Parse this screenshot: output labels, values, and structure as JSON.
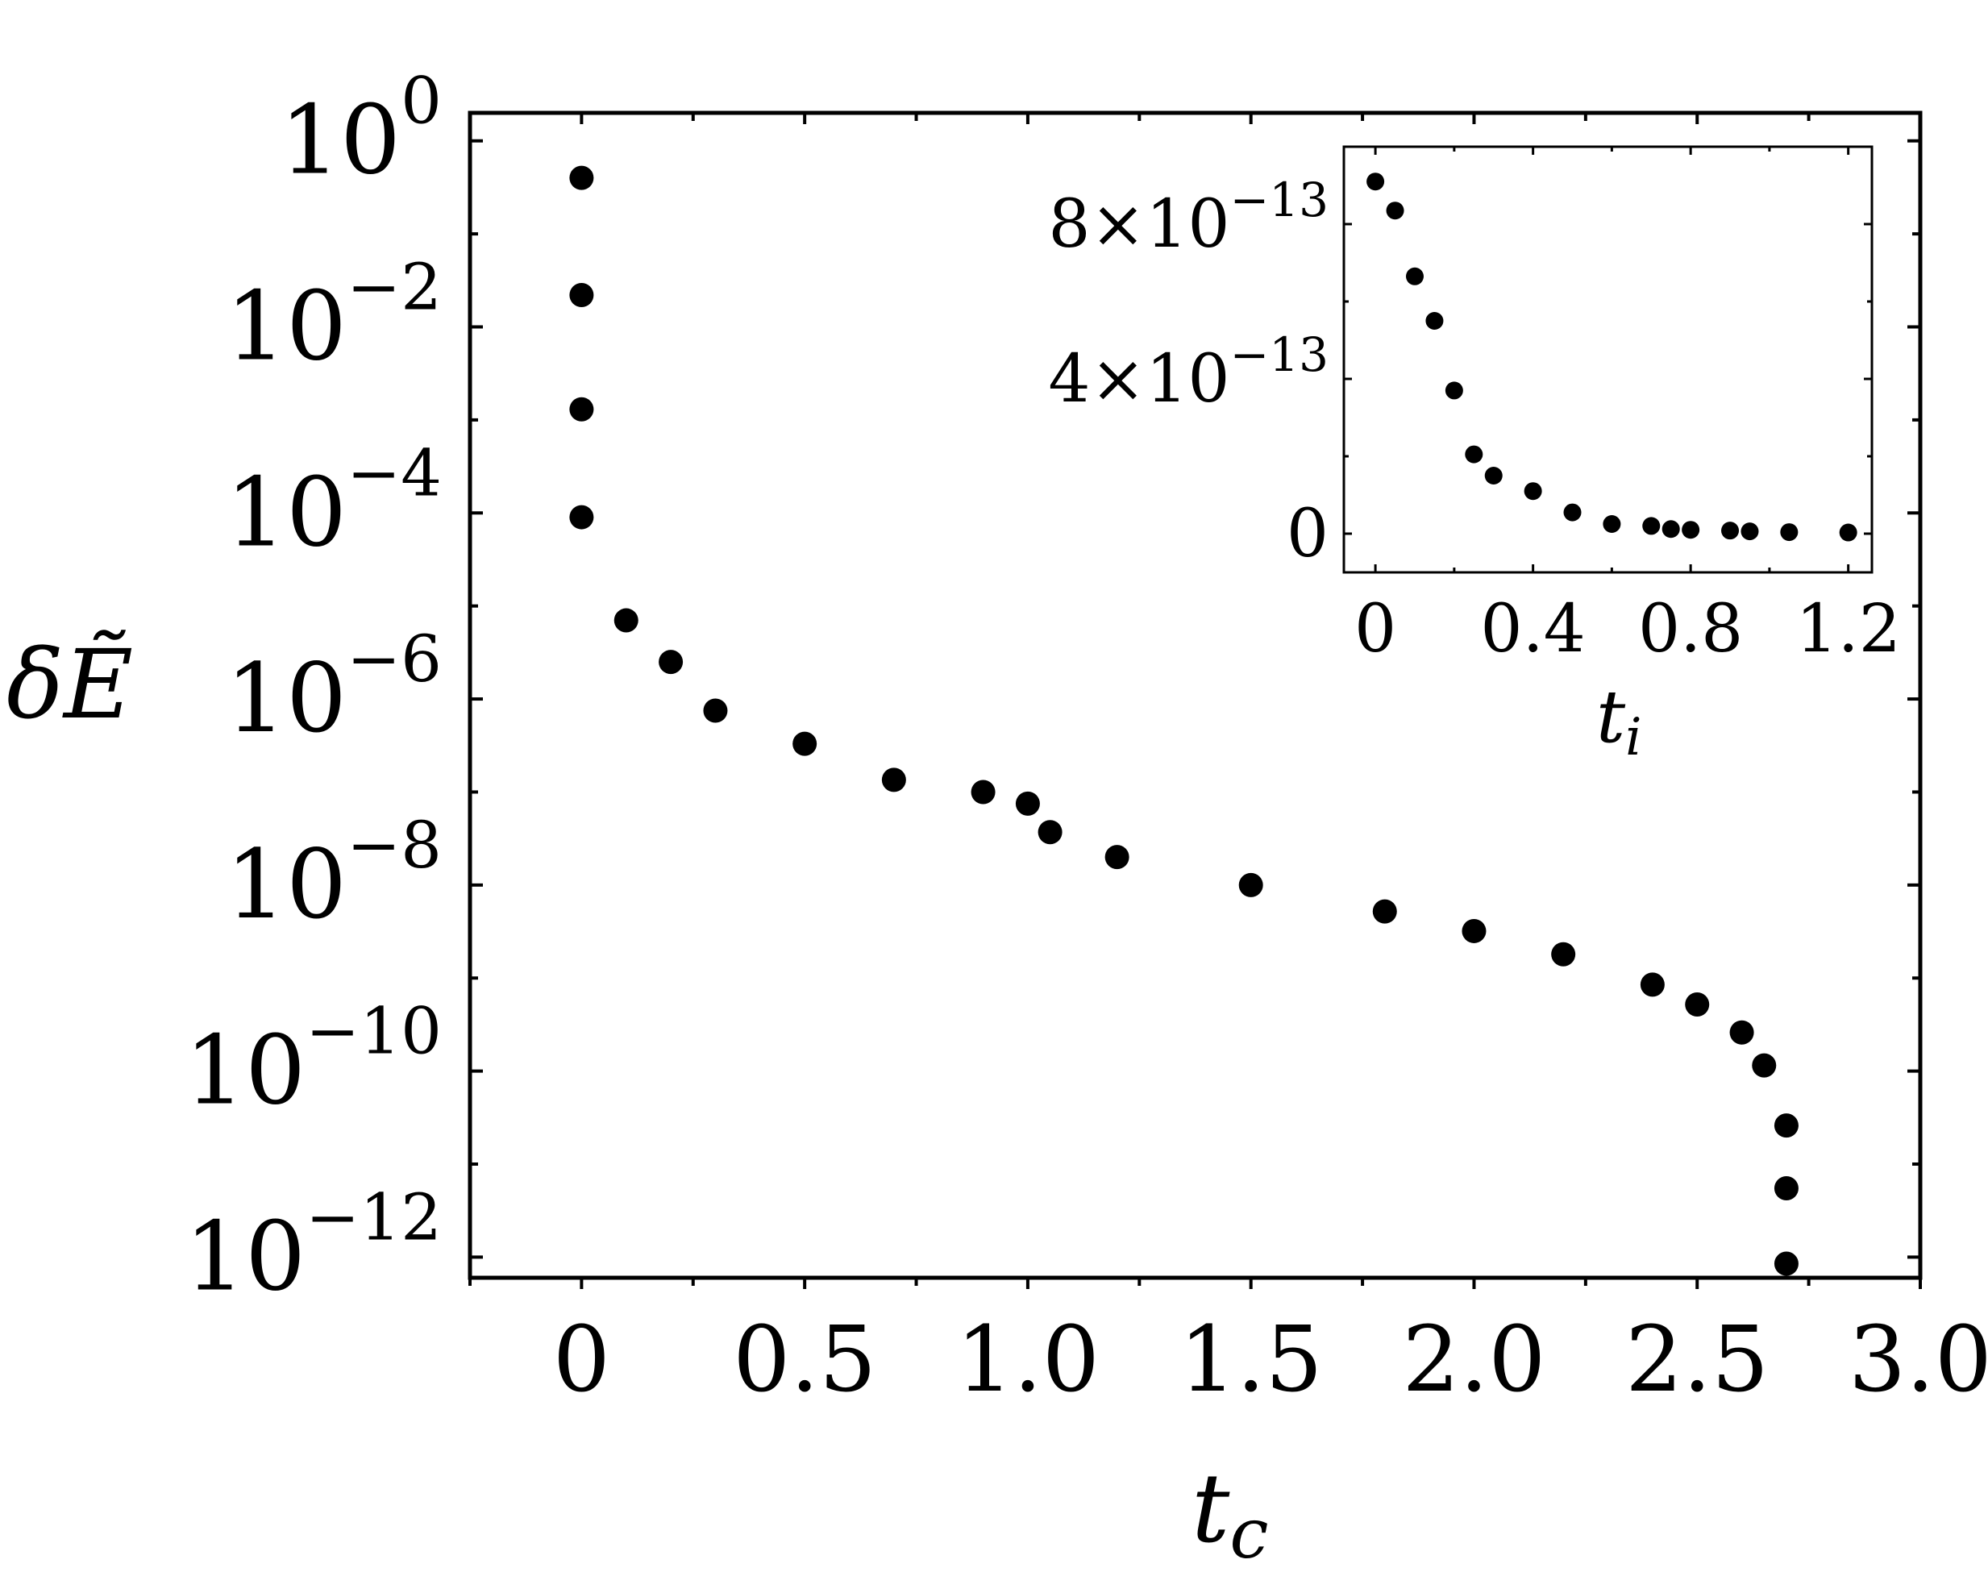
{
  "chart_data": [
    {
      "type": "scatter",
      "xlabel": "t",
      "xlabel_sub": "c",
      "ylabel": "δẼ",
      "yscale": "log",
      "xlim": [
        -0.25,
        3.0
      ],
      "ylim": [
        6e-13,
        2.0
      ],
      "xticks": [
        0,
        0.5,
        1.0,
        1.5,
        2.0,
        2.5,
        3.0
      ],
      "xtick_labels": [
        "0",
        "0.5",
        "1.0",
        "1.5",
        "2.0",
        "2.5",
        "3.0"
      ],
      "ytick_exponents": [
        0,
        -2,
        -4,
        -6,
        -8,
        -10,
        -12
      ],
      "ytick_labels": [
        "10",
        "10",
        "10",
        "10",
        "10",
        "10",
        "10"
      ],
      "ytick_label_sups": [
        "0",
        "−2",
        "−4",
        "−6",
        "−8",
        "−10",
        "−12"
      ],
      "marker_color": "#000000",
      "series": [
        {
          "x": [
            0,
            0,
            0,
            0,
            0.1,
            0.2,
            0.3,
            0.5,
            0.7,
            0.9,
            1.0,
            1.05,
            1.2,
            1.5,
            1.8,
            2.0,
            2.2,
            2.4,
            2.5,
            2.6,
            2.65,
            2.7,
            2.7,
            2.7
          ],
          "y": [
            0.4,
            0.022,
            0.0013,
            9e-05,
            7e-06,
            2.5e-06,
            7.5e-07,
            3.3e-07,
            1.35e-07,
            1e-07,
            7.5e-08,
            3.7e-08,
            2e-08,
            1e-08,
            5.2e-09,
            3.2e-09,
            1.8e-09,
            8.5e-10,
            5.2e-10,
            2.6e-10,
            1.15e-10,
            2.6e-11,
            5.5e-12,
            8.5e-13
          ]
        }
      ]
    },
    {
      "type": "scatter",
      "inset": true,
      "xlabel": "t",
      "xlabel_sub": "i",
      "ylabel": "",
      "xlim": [
        -0.08,
        1.26
      ],
      "ylim": [
        -1e-13,
        1e-12
      ],
      "xticks": [
        0,
        0.4,
        0.8,
        1.2
      ],
      "xtick_labels": [
        "0",
        "0.4",
        "0.8",
        "1.2"
      ],
      "yticks": [
        0,
        4e-13,
        8e-13
      ],
      "ytick_labels": [
        "0",
        "4×10",
        "8×10"
      ],
      "ytick_label_sups": [
        "",
        "−13",
        "−13"
      ],
      "marker_color": "#000000",
      "series": [
        {
          "x": [
            0,
            0.05,
            0.1,
            0.15,
            0.2,
            0.25,
            0.3,
            0.4,
            0.5,
            0.6,
            0.7,
            0.75,
            0.8,
            0.9,
            0.95,
            1.05,
            1.2
          ],
          "y": [
            9.1e-13,
            8.35e-13,
            6.65e-13,
            5.5e-13,
            3.7e-13,
            2.05e-13,
            1.5e-13,
            1.1e-13,
            5.5e-14,
            2.5e-14,
            2e-14,
            1.2e-14,
            1e-14,
            8e-15,
            6e-15,
            4e-15,
            3e-15
          ]
        }
      ]
    }
  ]
}
